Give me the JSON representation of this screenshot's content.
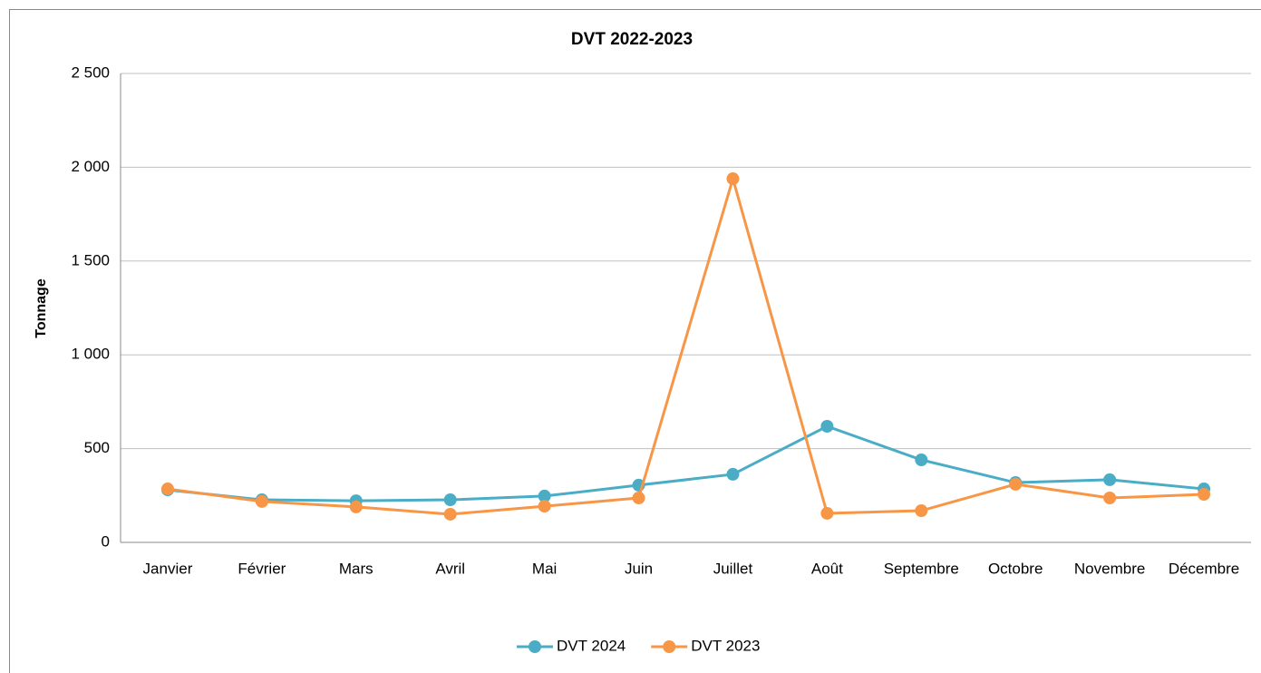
{
  "chart_data": {
    "type": "line",
    "title": "DVT 2022-2023",
    "y_label": "Tonnage",
    "categories": [
      "Janvier",
      "Février",
      "Mars",
      "Avril",
      "Mai",
      "Juin",
      "Juillet",
      "Août",
      "Septembre",
      "Octobre",
      "Novembre",
      "Décembre"
    ],
    "series": [
      {
        "name": "DVT 2024",
        "color": "#4bacc6",
        "values": [
          280,
          227,
          222,
          227,
          247,
          305,
          363,
          619,
          440,
          319,
          334,
          285
        ]
      },
      {
        "name": "DVT 2023",
        "color": "#f79646",
        "values": [
          285,
          218,
          189,
          150,
          193,
          237,
          1939,
          155,
          169,
          310,
          237,
          256
        ]
      }
    ],
    "ylim": [
      0,
      2500
    ],
    "yticks": [
      0,
      500,
      {
        "value": 1000,
        "label": "1 000"
      },
      {
        "value": 1500,
        "label": "1 500"
      },
      {
        "value": 2000,
        "label": "2 000"
      },
      {
        "value": 2500,
        "label": "2 500"
      }
    ],
    "grid": true,
    "legend": "bottom"
  }
}
